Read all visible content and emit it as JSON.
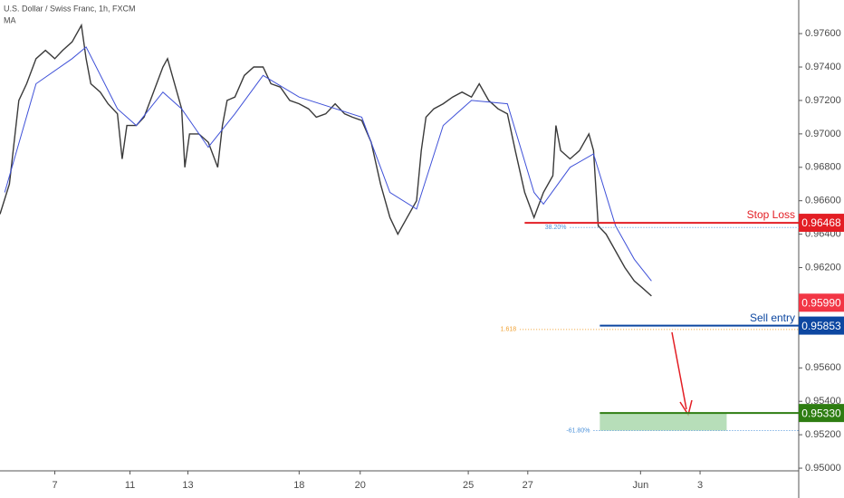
{
  "chart_data": {
    "type": "line",
    "title": "U.S. Dollar / Swiss Franc, 1h, FXCM",
    "subtitle": "MA",
    "xlim": [
      0,
      510
    ],
    "xticks": [
      {
        "value": 35,
        "label": "7"
      },
      {
        "value": 83,
        "label": "11"
      },
      {
        "value": 120,
        "label": "13"
      },
      {
        "value": 191,
        "label": "18"
      },
      {
        "value": 230,
        "label": "20"
      },
      {
        "value": 299,
        "label": "25"
      },
      {
        "value": 337,
        "label": "27"
      },
      {
        "value": 409,
        "label": "Jun"
      },
      {
        "value": 447,
        "label": "3"
      }
    ],
    "ylim": [
      0.94984,
      0.97801
    ],
    "yticks": [
      {
        "value": 0.95,
        "label": "0.95000"
      },
      {
        "value": 0.952,
        "label": "0.95200"
      },
      {
        "value": 0.954,
        "label": "0.95400"
      },
      {
        "value": 0.956,
        "label": "0.95600"
      },
      {
        "value": 0.962,
        "label": "0.96200"
      },
      {
        "value": 0.964,
        "label": "0.96400"
      },
      {
        "value": 0.966,
        "label": "0.96600"
      },
      {
        "value": 0.968,
        "label": "0.96800"
      },
      {
        "value": 0.97,
        "label": "0.97000"
      },
      {
        "value": 0.972,
        "label": "0.97200"
      },
      {
        "value": 0.974,
        "label": "0.97400"
      },
      {
        "value": 0.976,
        "label": "0.97600"
      }
    ],
    "series": [
      {
        "color": "#3a3a3a",
        "x": [
          0,
          6,
          12,
          17,
          23,
          29,
          35,
          40,
          46,
          52,
          55,
          58,
          64,
          69,
          75,
          78,
          81,
          87,
          92,
          98,
          104,
          107,
          110,
          116,
          118,
          121,
          127,
          133,
          139,
          142,
          145,
          150,
          156,
          162,
          168,
          173,
          179,
          185,
          191,
          197,
          202,
          208,
          214,
          220,
          225,
          231,
          237,
          243,
          249,
          254,
          260,
          266,
          269,
          272,
          277,
          283,
          289,
          295,
          301,
          306,
          312,
          318,
          324,
          329,
          335,
          341,
          347,
          353,
          355,
          358,
          364,
          370,
          376,
          379,
          382,
          387,
          393,
          399,
          405,
          410,
          416
        ],
        "values": [
          0.9652,
          0.967,
          0.972,
          0.973,
          0.9745,
          0.975,
          0.9745,
          0.975,
          0.9755,
          0.9765,
          0.9745,
          0.973,
          0.9725,
          0.9718,
          0.9712,
          0.9685,
          0.9705,
          0.9705,
          0.971,
          0.9725,
          0.974,
          0.9745,
          0.9735,
          0.9715,
          0.968,
          0.97,
          0.97,
          0.9695,
          0.968,
          0.9705,
          0.972,
          0.9722,
          0.9735,
          0.974,
          0.974,
          0.973,
          0.9728,
          0.972,
          0.9718,
          0.9715,
          0.971,
          0.9712,
          0.9718,
          0.9712,
          0.971,
          0.9708,
          0.9695,
          0.967,
          0.965,
          0.964,
          0.965,
          0.966,
          0.969,
          0.971,
          0.9715,
          0.9718,
          0.9722,
          0.9725,
          0.9722,
          0.973,
          0.972,
          0.9715,
          0.9712,
          0.969,
          0.9665,
          0.965,
          0.9665,
          0.9675,
          0.9705,
          0.969,
          0.9685,
          0.969,
          0.97,
          0.969,
          0.9645,
          0.964,
          0.963,
          0.962,
          0.9612,
          0.9608,
          0.9603
        ]
      },
      {
        "name": "MA",
        "color": "#3f51d8",
        "x": [
          3,
          23,
          46,
          55,
          75,
          87,
          104,
          116,
          133,
          150,
          168,
          191,
          231,
          249,
          266,
          283,
          301,
          324,
          341,
          347,
          364,
          379,
          393,
          405,
          416
        ],
        "values": [
          0.9665,
          0.973,
          0.9745,
          0.9752,
          0.9715,
          0.9705,
          0.9725,
          0.9715,
          0.9692,
          0.9712,
          0.9735,
          0.9722,
          0.971,
          0.9665,
          0.9655,
          0.9705,
          0.972,
          0.9718,
          0.9665,
          0.9658,
          0.968,
          0.9688,
          0.9645,
          0.9625,
          0.9612
        ]
      }
    ],
    "levels": [
      {
        "name": "Stop Loss",
        "value": 0.96468,
        "label": "0.96468",
        "color": "#e31e24",
        "x_start": 335
      },
      {
        "name": "Sell entry",
        "value": 0.95853,
        "label": "0.95853",
        "color": "#0d47a1",
        "x_start": 383
      },
      {
        "value": 0.9533,
        "label": "0.95330",
        "color": "#2e7d12",
        "x_start": 383
      }
    ],
    "fib_lines": [
      {
        "name": "38.20%",
        "value": 0.9644,
        "color": "#4a90d9",
        "x_start": 364
      },
      {
        "name": "1.618",
        "value": 0.9583,
        "color": "#f0a030",
        "x_start": 332
      },
      {
        "name": "-61.80%",
        "value": 0.95225,
        "color": "#4a90d9",
        "x_start": 379
      }
    ],
    "target_box": {
      "x": [
        383,
        464
      ],
      "y": [
        0.95225,
        0.9533
      ],
      "color": "#a5d6a7"
    },
    "last_price": {
      "value": 0.9599,
      "label": "0.95990",
      "color": "#f23645"
    }
  }
}
